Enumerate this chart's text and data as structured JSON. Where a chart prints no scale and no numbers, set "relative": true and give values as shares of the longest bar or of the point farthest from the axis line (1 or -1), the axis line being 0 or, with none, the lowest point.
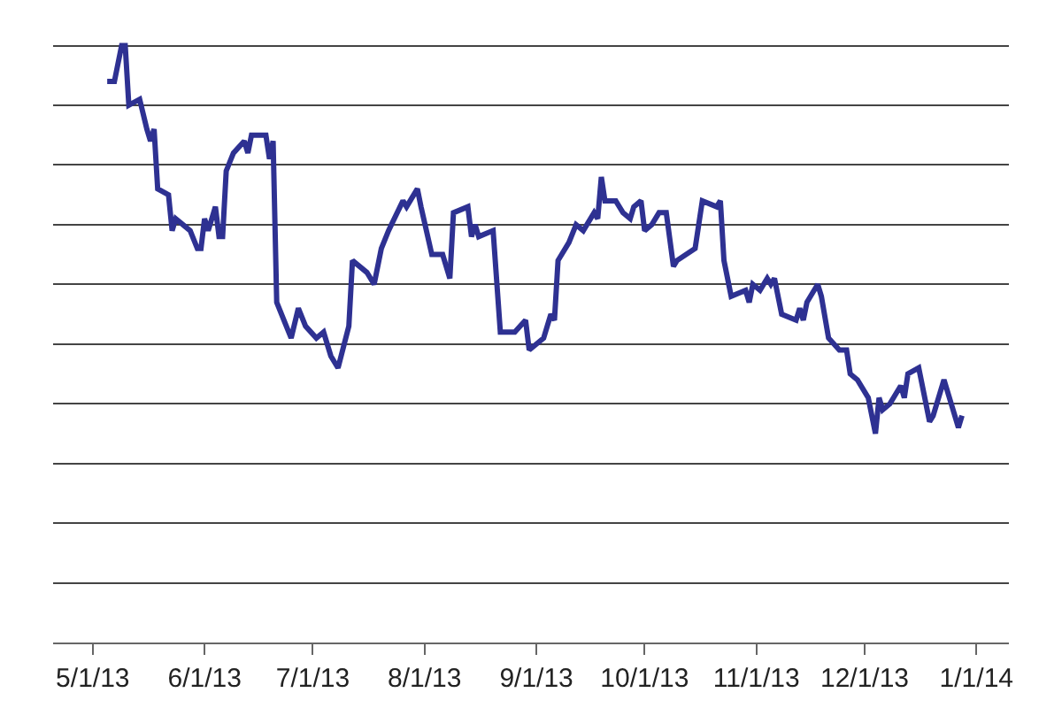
{
  "chart_data": {
    "type": "line",
    "relative": true,
    "grid": "y",
    "marker": "none",
    "line_style": "solid",
    "xlim": [
      "2013-04-20",
      "2014-01-10"
    ],
    "xticks": [
      {
        "value": "2013-05-01",
        "label": "5/1/13"
      },
      {
        "value": "2013-06-01",
        "label": "6/1/13"
      },
      {
        "value": "2013-07-01",
        "label": "7/1/13"
      },
      {
        "value": "2013-08-01",
        "label": "8/1/13"
      },
      {
        "value": "2013-09-01",
        "label": "9/1/13"
      },
      {
        "value": "2013-10-01",
        "label": "10/1/13"
      },
      {
        "value": "2013-11-01",
        "label": "11/1/13"
      },
      {
        "value": "2013-12-01",
        "label": "12/1/13"
      },
      {
        "value": "2014-01-01",
        "label": "1/1/14"
      }
    ],
    "x": [
      "2013-05-05",
      "2013-05-07",
      "2013-05-09",
      "2013-05-10",
      "2013-05-11",
      "2013-05-14",
      "2013-05-16",
      "2013-05-17",
      "2013-05-18",
      "2013-05-19",
      "2013-05-22",
      "2013-05-23",
      "2013-05-24",
      "2013-05-26",
      "2013-05-28",
      "2013-05-30",
      "2013-05-31",
      "2013-06-01",
      "2013-06-02",
      "2013-06-04",
      "2013-06-05",
      "2013-06-06",
      "2013-06-07",
      "2013-06-09",
      "2013-06-12",
      "2013-06-13",
      "2013-06-14",
      "2013-06-18",
      "2013-06-19",
      "2013-06-20",
      "2013-06-21",
      "2013-06-23",
      "2013-06-25",
      "2013-06-27",
      "2013-06-29",
      "2013-07-02",
      "2013-07-04",
      "2013-07-06",
      "2013-07-08",
      "2013-07-11",
      "2013-07-12",
      "2013-07-16",
      "2013-07-18",
      "2013-07-20",
      "2013-07-22",
      "2013-07-26",
      "2013-07-27",
      "2013-07-30",
      "2013-07-31",
      "2013-08-03",
      "2013-08-06",
      "2013-08-08",
      "2013-08-09",
      "2013-08-13",
      "2013-08-14",
      "2013-08-15",
      "2013-08-16",
      "2013-08-20",
      "2013-08-22",
      "2013-08-26",
      "2013-08-29",
      "2013-08-30",
      "2013-09-03",
      "2013-09-05",
      "2013-09-06",
      "2013-09-07",
      "2013-09-10",
      "2013-09-12",
      "2013-09-14",
      "2013-09-17",
      "2013-09-18",
      "2013-09-19",
      "2013-09-20",
      "2013-09-23",
      "2013-09-25",
      "2013-09-27",
      "2013-09-28",
      "2013-09-30",
      "2013-10-01",
      "2013-10-03",
      "2013-10-05",
      "2013-10-07",
      "2013-10-09",
      "2013-10-10",
      "2013-10-15",
      "2013-10-17",
      "2013-10-21",
      "2013-10-22",
      "2013-10-23",
      "2013-10-25",
      "2013-10-29",
      "2013-10-30",
      "2013-10-31",
      "2013-11-02",
      "2013-11-04",
      "2013-11-05",
      "2013-11-06",
      "2013-11-08",
      "2013-11-12",
      "2013-11-13",
      "2013-11-14",
      "2013-11-15",
      "2013-11-18",
      "2013-11-19",
      "2013-11-21",
      "2013-11-24",
      "2013-11-26",
      "2013-11-27",
      "2013-11-29",
      "2013-12-02",
      "2013-12-04",
      "2013-12-05",
      "2013-12-06",
      "2013-12-08",
      "2013-12-11",
      "2013-12-12",
      "2013-12-13",
      "2013-12-16",
      "2013-12-19",
      "2013-12-20",
      "2013-12-23",
      "2013-12-25",
      "2013-12-27",
      "2013-12-28"
    ],
    "series": [
      {
        "color": "#2e3192",
        "values": [
          0.94,
          0.94,
          1.0,
          1.0,
          0.9,
          0.91,
          0.86,
          0.84,
          0.86,
          0.76,
          0.75,
          0.69,
          0.71,
          0.7,
          0.69,
          0.66,
          0.66,
          0.71,
          0.69,
          0.73,
          0.68,
          0.68,
          0.79,
          0.82,
          0.84,
          0.82,
          0.85,
          0.85,
          0.81,
          0.84,
          0.57,
          0.54,
          0.51,
          0.56,
          0.53,
          0.51,
          0.52,
          0.48,
          0.46,
          0.53,
          0.64,
          0.62,
          0.6,
          0.66,
          0.69,
          0.74,
          0.73,
          0.76,
          0.73,
          0.65,
          0.65,
          0.61,
          0.72,
          0.73,
          0.68,
          0.7,
          0.68,
          0.69,
          0.52,
          0.52,
          0.54,
          0.49,
          0.51,
          0.55,
          0.54,
          0.64,
          0.67,
          0.7,
          0.69,
          0.72,
          0.71,
          0.78,
          0.74,
          0.74,
          0.72,
          0.71,
          0.73,
          0.74,
          0.69,
          0.7,
          0.72,
          0.72,
          0.63,
          0.64,
          0.66,
          0.74,
          0.73,
          0.74,
          0.64,
          0.58,
          0.59,
          0.57,
          0.6,
          0.59,
          0.61,
          0.6,
          0.61,
          0.55,
          0.54,
          0.56,
          0.54,
          0.57,
          0.6,
          0.58,
          0.51,
          0.49,
          0.49,
          0.45,
          0.44,
          0.41,
          0.35,
          0.41,
          0.39,
          0.4,
          0.43,
          0.41,
          0.45,
          0.46,
          0.37,
          0.38,
          0.44,
          0.4,
          0.36,
          0.38
        ]
      }
    ]
  }
}
